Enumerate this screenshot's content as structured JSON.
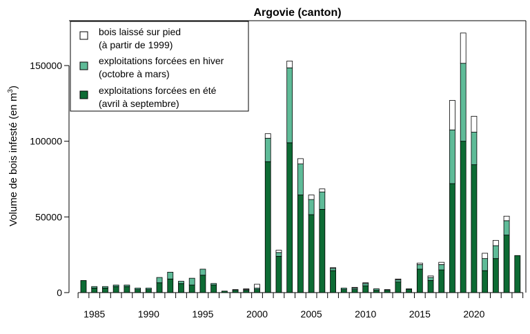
{
  "chart_data": {
    "type": "bar",
    "stacked": true,
    "title": "Argovie (canton)",
    "ylabel": "Volume de bois infesté (en m",
    "ylabel_sup": "3",
    "ylabel_close": ")",
    "xlabel": "",
    "ylim": [
      0,
      175000
    ],
    "xlim": [
      1983,
      2025
    ],
    "x_ticks": [
      1985,
      1990,
      1995,
      2000,
      2005,
      2010,
      2015,
      2020
    ],
    "y_ticks": [
      0,
      50000,
      100000,
      150000
    ],
    "grid": false,
    "legend_position": "top-left",
    "colors": {
      "summer": "#0d6b34",
      "winter": "#5fbb98",
      "standing": "#ffffff",
      "outline": "#000000"
    },
    "years": [
      1984,
      1985,
      1986,
      1987,
      1988,
      1989,
      1990,
      1991,
      1992,
      1993,
      1994,
      1995,
      1996,
      1997,
      1998,
      1999,
      2000,
      2001,
      2002,
      2003,
      2004,
      2005,
      2006,
      2007,
      2008,
      2009,
      2010,
      2011,
      2012,
      2013,
      2014,
      2015,
      2016,
      2017,
      2018,
      2019,
      2020,
      2021,
      2022,
      2023,
      2024
    ],
    "series": [
      {
        "key": "summer",
        "name": "exploitations forcées en été",
        "name_line2": "(avril à septembre)",
        "values": [
          8000,
          3000,
          3000,
          4000,
          4000,
          2000,
          2000,
          6500,
          9000,
          6000,
          5000,
          11500,
          5000,
          1000,
          1500,
          1500,
          2000,
          86500,
          24000,
          99000,
          64500,
          51500,
          55000,
          14500,
          2000,
          2000,
          4500,
          1500,
          1500,
          7000,
          2000,
          15500,
          8000,
          15000,
          72000,
          100000,
          84500,
          14500,
          22500,
          38000,
          24500
        ]
      },
      {
        "key": "winter",
        "name": "exploitations forcées en hiver",
        "name_line2": "(octobre à mars)",
        "values": [
          0,
          1000,
          1000,
          1000,
          1000,
          1000,
          1000,
          3500,
          4500,
          1500,
          4500,
          4000,
          1000,
          0,
          500,
          500,
          1000,
          15500,
          2500,
          49500,
          20500,
          10000,
          11500,
          1500,
          1000,
          1000,
          1500,
          1000,
          500,
          1500,
          500,
          3000,
          2000,
          3500,
          35500,
          51500,
          21500,
          8000,
          8500,
          9500,
          0
        ]
      },
      {
        "key": "standing",
        "name": "bois laissé sur pied",
        "name_line2": "(à partir de 1999)",
        "values": [
          0,
          0,
          0,
          0,
          0,
          0,
          0,
          0,
          0,
          0,
          0,
          0,
          0,
          0,
          0,
          500,
          2500,
          3000,
          1500,
          4500,
          3500,
          3000,
          2000,
          500,
          0,
          500,
          500,
          0,
          0,
          500,
          0,
          1000,
          1000,
          1500,
          19500,
          20000,
          10500,
          3500,
          3500,
          3000,
          0
        ]
      }
    ]
  }
}
